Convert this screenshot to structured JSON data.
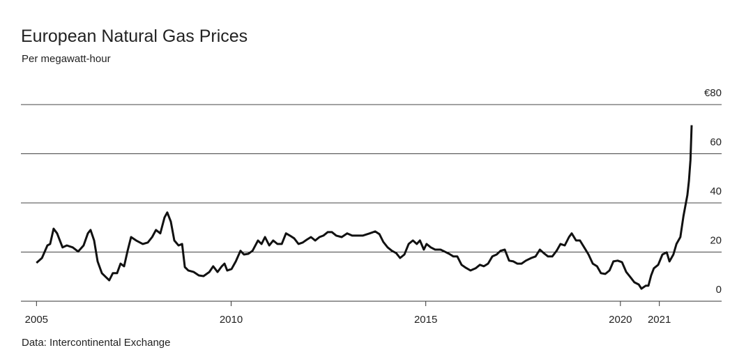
{
  "chart_data": {
    "type": "line",
    "title": "European Natural Gas Prices",
    "subtitle": "Per megawatt-hour",
    "source": "Data: Intercontinental Exchange",
    "color": "#111111",
    "grid": true,
    "xlim": [
      2004.6,
      2022.6
    ],
    "xticks": [
      2005,
      2010,
      2015,
      2020,
      2021
    ],
    "ylim": [
      0,
      80
    ],
    "yticks": [
      0,
      20,
      40,
      60,
      {
        "value": 80,
        "label": "€80"
      }
    ],
    "x": [
      2005.0,
      2005.14,
      2005.28,
      2005.35,
      2005.44,
      2005.53,
      2005.67,
      2005.78,
      2005.93,
      2006.07,
      2006.21,
      2006.32,
      2006.39,
      2006.48,
      2006.57,
      2006.68,
      2006.79,
      2006.87,
      2006.96,
      2007.07,
      2007.16,
      2007.25,
      2007.34,
      2007.43,
      2007.56,
      2007.73,
      2007.86,
      2007.97,
      2008.07,
      2008.18,
      2008.29,
      2008.36,
      2008.45,
      2008.54,
      2008.65,
      2008.74,
      2008.81,
      2008.9,
      2009.04,
      2009.17,
      2009.29,
      2009.44,
      2009.54,
      2009.65,
      2009.76,
      2009.83,
      2009.9,
      2010.01,
      2010.12,
      2010.24,
      2010.33,
      2010.44,
      2010.55,
      2010.69,
      2010.78,
      2010.87,
      2010.98,
      2011.08,
      2011.19,
      2011.3,
      2011.41,
      2011.51,
      2011.62,
      2011.73,
      2011.84,
      2011.94,
      2012.05,
      2012.16,
      2012.27,
      2012.37,
      2012.48,
      2012.59,
      2012.7,
      2012.84,
      2012.98,
      2013.11,
      2013.23,
      2013.38,
      2013.56,
      2013.7,
      2013.81,
      2013.91,
      2014.02,
      2014.13,
      2014.24,
      2014.34,
      2014.45,
      2014.56,
      2014.67,
      2014.77,
      2014.85,
      2014.95,
      2015.02,
      2015.13,
      2015.24,
      2015.38,
      2015.6,
      2015.71,
      2015.81,
      2015.92,
      2016.03,
      2016.15,
      2016.28,
      2016.39,
      2016.49,
      2016.6,
      2016.71,
      2016.82,
      2016.92,
      2017.03,
      2017.14,
      2017.25,
      2017.35,
      2017.46,
      2017.57,
      2017.71,
      2017.82,
      2017.93,
      2018.03,
      2018.14,
      2018.25,
      2018.36,
      2018.46,
      2018.57,
      2018.68,
      2018.75,
      2018.86,
      2018.96,
      2019.07,
      2019.18,
      2019.29,
      2019.4,
      2019.5,
      2019.61,
      2019.72,
      2019.82,
      2019.93,
      2020.04,
      2020.15,
      2020.26,
      2020.36,
      2020.47,
      2020.54,
      2020.65,
      2020.72,
      2020.79,
      2020.86,
      2020.97,
      2021.08,
      2021.19,
      2021.26,
      2021.36,
      2021.44,
      2021.54,
      2021.62,
      2021.72,
      2021.76,
      2021.8,
      2021.83
    ],
    "values": [
      15.6,
      17.6,
      22.7,
      23.3,
      29.5,
      27.6,
      21.9,
      22.7,
      21.9,
      20.2,
      22.7,
      27.6,
      29.0,
      24.7,
      16.2,
      11.4,
      9.7,
      8.5,
      11.4,
      11.4,
      15.3,
      14.2,
      20.5,
      26.1,
      24.7,
      23.3,
      23.9,
      26.1,
      29.0,
      27.6,
      34.1,
      36.1,
      32.4,
      24.7,
      22.7,
      23.3,
      13.9,
      12.5,
      11.9,
      10.5,
      10.2,
      11.9,
      14.2,
      11.9,
      14.2,
      15.3,
      12.5,
      13.1,
      16.2,
      20.5,
      19.0,
      19.3,
      20.5,
      24.7,
      23.3,
      26.1,
      22.7,
      24.7,
      23.3,
      23.3,
      27.6,
      26.7,
      25.6,
      23.3,
      23.9,
      25.0,
      26.1,
      24.7,
      26.1,
      26.7,
      28.1,
      28.1,
      26.7,
      26.1,
      27.6,
      26.7,
      26.7,
      26.7,
      27.6,
      28.4,
      27.3,
      24.1,
      21.9,
      20.5,
      19.6,
      17.6,
      19.0,
      23.3,
      24.7,
      23.3,
      24.7,
      21.0,
      23.3,
      21.9,
      21.0,
      21.0,
      19.3,
      18.2,
      18.2,
      14.8,
      13.6,
      12.5,
      13.4,
      14.8,
      14.2,
      15.3,
      18.2,
      19.0,
      20.5,
      21.0,
      16.5,
      16.2,
      15.3,
      15.3,
      16.5,
      17.6,
      18.2,
      21.0,
      19.6,
      18.2,
      18.2,
      20.5,
      23.3,
      22.7,
      26.1,
      27.6,
      24.7,
      24.7,
      21.9,
      19.0,
      15.3,
      14.2,
      11.4,
      11.1,
      12.5,
      16.2,
      16.5,
      15.9,
      11.9,
      9.7,
      7.7,
      6.8,
      5.1,
      6.3,
      6.3,
      10.5,
      13.4,
      14.8,
      19.0,
      19.9,
      16.2,
      19.0,
      23.3,
      26.1,
      34.7,
      43.2,
      48.9,
      57.4,
      71.6
    ]
  }
}
